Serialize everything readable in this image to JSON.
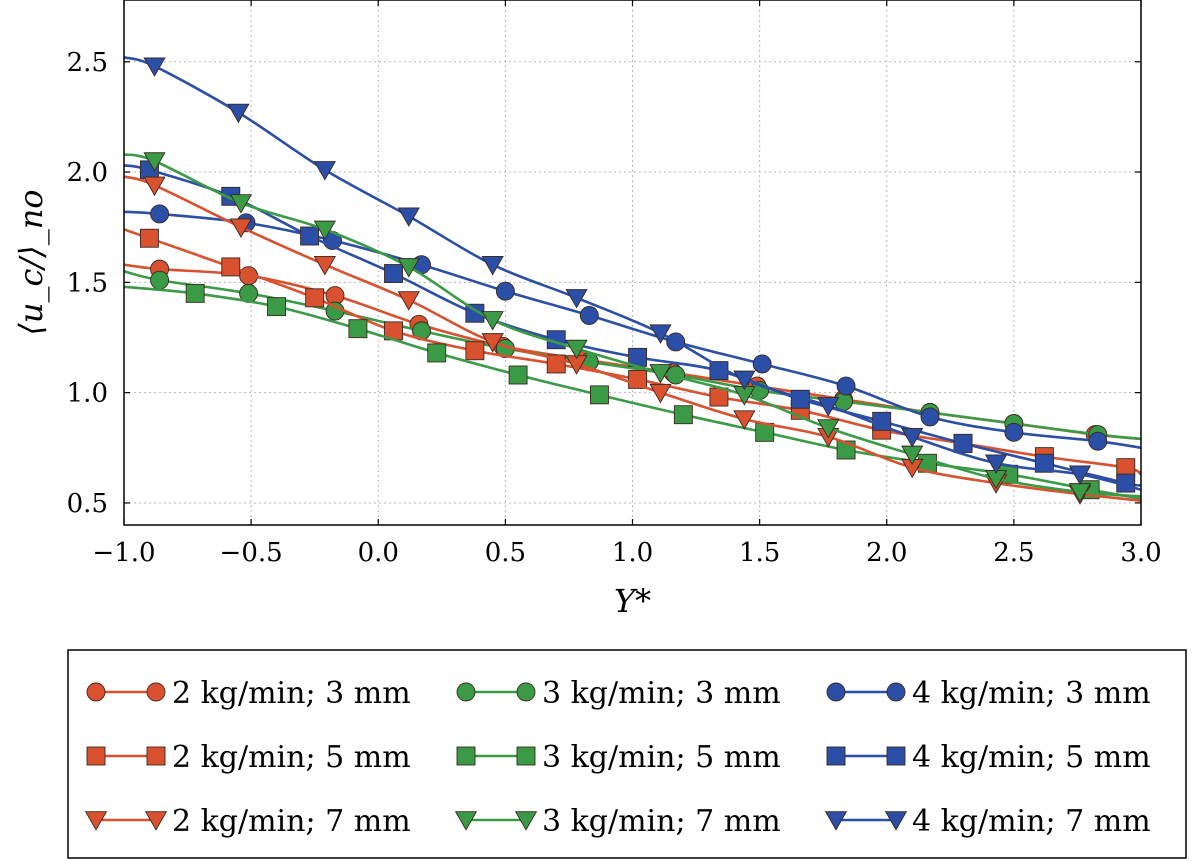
{
  "chart_data": {
    "type": "line",
    "xlabel": "Y*",
    "ylabel": "⟨u_c/⟩_no",
    "xlim": [
      -1.0,
      3.0
    ],
    "ylim": [
      0.4,
      2.78
    ],
    "xticks": [
      -1.0,
      -0.5,
      0.0,
      0.5,
      1.0,
      1.5,
      2.0,
      2.5,
      3.0
    ],
    "xtick_labels": [
      "−1.0",
      "−0.5",
      "0.0",
      "0.5",
      "1.0",
      "1.5",
      "2.0",
      "2.5",
      "3.0"
    ],
    "yticks": [
      0.5,
      1.0,
      1.5,
      2.0,
      2.5
    ],
    "ytick_labels": [
      "0.5",
      "1.0",
      "1.5",
      "2.0",
      "2.5"
    ],
    "grid": true,
    "legend_position": "bottom",
    "colors": {
      "red": "#d9512f",
      "green": "#3a9a46",
      "blue": "#2b4ea6"
    },
    "series": [
      {
        "name": "2 kg/min; 3 mm",
        "color": "#d9512f",
        "marker": "circle",
        "x": [
          -1.0,
          -0.86,
          -0.51,
          -0.17,
          0.16,
          0.49,
          0.81,
          1.16,
          1.49,
          1.83,
          2.17,
          2.5,
          2.82,
          3.0
        ],
        "y": [
          1.58,
          1.56,
          1.53,
          1.44,
          1.31,
          1.21,
          1.15,
          1.09,
          1.03,
          0.97,
          0.91,
          0.86,
          0.81,
          0.79
        ]
      },
      {
        "name": "3 kg/min; 3 mm",
        "color": "#3a9a46",
        "marker": "circle",
        "x": [
          -1.0,
          -0.86,
          -0.51,
          -0.17,
          0.17,
          0.5,
          0.83,
          1.17,
          1.5,
          1.83,
          2.17,
          2.5,
          2.83,
          3.0
        ],
        "y": [
          1.55,
          1.51,
          1.45,
          1.37,
          1.28,
          1.2,
          1.14,
          1.08,
          1.01,
          0.96,
          0.91,
          0.86,
          0.81,
          0.79
        ]
      },
      {
        "name": "4 kg/min; 3 mm",
        "color": "#2b4ea6",
        "marker": "circle",
        "x": [
          -1.0,
          -0.86,
          -0.52,
          -0.18,
          0.17,
          0.5,
          0.83,
          1.17,
          1.51,
          1.84,
          2.17,
          2.5,
          2.83,
          3.0
        ],
        "y": [
          1.82,
          1.81,
          1.77,
          1.69,
          1.58,
          1.46,
          1.35,
          1.23,
          1.13,
          1.03,
          0.89,
          0.82,
          0.78,
          0.75
        ]
      },
      {
        "name": "2 kg/min; 5 mm",
        "color": "#d9512f",
        "marker": "square",
        "x": [
          -1.0,
          -0.9,
          -0.58,
          -0.25,
          0.06,
          0.38,
          0.7,
          1.02,
          1.34,
          1.66,
          1.98,
          2.3,
          2.62,
          2.94,
          3.0
        ],
        "y": [
          1.74,
          1.7,
          1.57,
          1.43,
          1.28,
          1.19,
          1.13,
          1.06,
          0.98,
          0.92,
          0.83,
          0.77,
          0.71,
          0.66,
          0.63
        ]
      },
      {
        "name": "3 kg/min; 5 mm",
        "color": "#3a9a46",
        "marker": "square",
        "x": [
          -1.0,
          -0.72,
          -0.4,
          -0.08,
          0.23,
          0.55,
          0.87,
          1.2,
          1.52,
          1.84,
          2.16,
          2.48,
          2.8,
          3.0
        ],
        "y": [
          1.48,
          1.45,
          1.39,
          1.29,
          1.18,
          1.08,
          0.99,
          0.9,
          0.82,
          0.74,
          0.68,
          0.63,
          0.56,
          0.52
        ]
      },
      {
        "name": "4 kg/min; 5 mm",
        "color": "#2b4ea6",
        "marker": "square",
        "x": [
          -1.0,
          -0.9,
          -0.58,
          -0.27,
          0.06,
          0.38,
          0.7,
          1.02,
          1.34,
          1.66,
          1.98,
          2.3,
          2.62,
          2.94,
          3.0
        ],
        "y": [
          2.03,
          2.01,
          1.89,
          1.71,
          1.54,
          1.36,
          1.24,
          1.16,
          1.1,
          0.97,
          0.87,
          0.77,
          0.68,
          0.59,
          0.58
        ]
      },
      {
        "name": "2 kg/min; 7 mm",
        "color": "#d9512f",
        "marker": "triangle",
        "x": [
          -1.0,
          -0.88,
          -0.54,
          -0.21,
          0.12,
          0.45,
          0.78,
          1.11,
          1.44,
          1.77,
          2.1,
          2.43,
          2.76,
          3.0
        ],
        "y": [
          1.98,
          1.94,
          1.75,
          1.58,
          1.42,
          1.23,
          1.13,
          1.0,
          0.88,
          0.8,
          0.66,
          0.59,
          0.54,
          0.51
        ]
      },
      {
        "name": "3 kg/min; 7 mm",
        "color": "#3a9a46",
        "marker": "triangle",
        "x": [
          -1.0,
          -0.88,
          -0.54,
          -0.21,
          0.12,
          0.45,
          0.78,
          1.11,
          1.44,
          1.77,
          2.1,
          2.43,
          2.76,
          3.0
        ],
        "y": [
          2.08,
          2.05,
          1.86,
          1.74,
          1.57,
          1.33,
          1.2,
          1.09,
          0.99,
          0.84,
          0.72,
          0.61,
          0.55,
          0.53
        ]
      },
      {
        "name": "4 kg/min; 7 mm",
        "color": "#2b4ea6",
        "marker": "triangle",
        "x": [
          -1.0,
          -0.88,
          -0.55,
          -0.21,
          0.12,
          0.45,
          0.78,
          1.11,
          1.44,
          1.77,
          2.1,
          2.43,
          2.76,
          3.0
        ],
        "y": [
          2.52,
          2.48,
          2.27,
          2.01,
          1.8,
          1.58,
          1.43,
          1.27,
          1.06,
          0.94,
          0.8,
          0.68,
          0.63,
          0.56
        ]
      }
    ]
  }
}
